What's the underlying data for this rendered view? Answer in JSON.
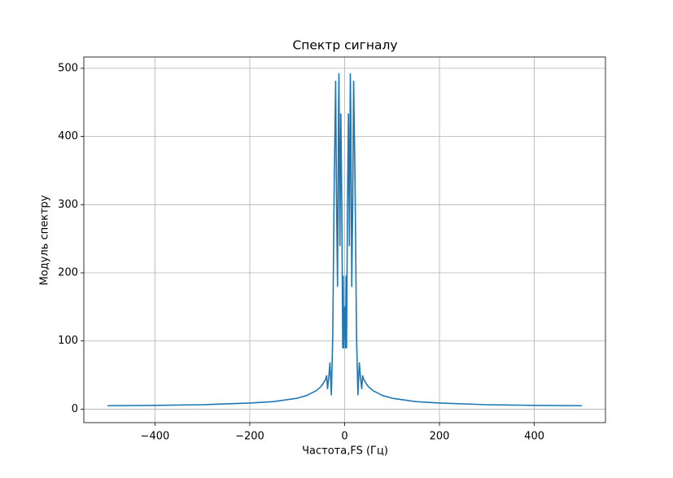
{
  "chart_data": {
    "type": "line",
    "title": "Спектр сигналу",
    "xlabel": "Частота,FS (Гц)",
    "ylabel": "Модуль спектру",
    "x": [
      -500,
      -400,
      -300,
      -200,
      -150,
      -100,
      -80,
      -60,
      -50,
      -45,
      -40,
      -38,
      -36,
      -33,
      -31,
      -28,
      -25,
      -22,
      -19,
      -17,
      -15,
      -13,
      -12,
      -10,
      -8,
      -6,
      -4,
      -3,
      -2,
      0,
      2,
      3,
      4,
      6,
      8,
      10,
      12,
      13,
      15,
      17,
      19,
      22,
      25,
      28,
      31,
      33,
      36,
      38,
      40,
      45,
      50,
      60,
      80,
      100,
      150,
      200,
      300,
      400,
      500
    ],
    "values": [
      5,
      5.5,
      6.5,
      9,
      11,
      16,
      20,
      27,
      33,
      38,
      44,
      49,
      30,
      50,
      68,
      21,
      110,
      330,
      481,
      300,
      180,
      430,
      492,
      240,
      433,
      300,
      90,
      195,
      90,
      150,
      90,
      195,
      90,
      300,
      433,
      240,
      492,
      430,
      180,
      300,
      481,
      330,
      110,
      21,
      68,
      50,
      30,
      49,
      44,
      38,
      33,
      27,
      20,
      16,
      11,
      9,
      6.5,
      5.5,
      5
    ],
    "color": "#1f77b4",
    "xlim": [
      -550,
      550
    ],
    "xticks": [
      {
        "value": -400,
        "label": "−400"
      },
      {
        "value": -200,
        "label": "−200"
      },
      0,
      200,
      400
    ],
    "ylim": [
      -19.8,
      516.6
    ],
    "yticks": [
      0,
      100,
      200,
      300,
      400,
      500
    ],
    "grid": true
  }
}
